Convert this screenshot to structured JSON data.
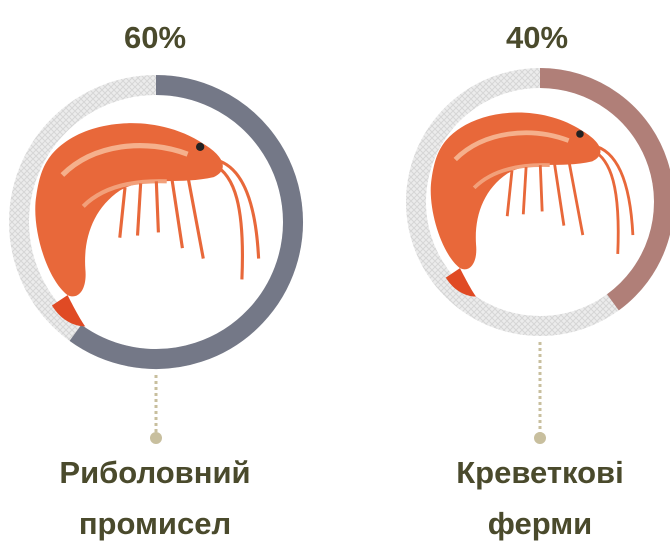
{
  "chart_data": [
    {
      "type": "donut",
      "values": [
        60
      ],
      "value_labels": [
        "60%"
      ],
      "categories": [
        "Риболовний промисел"
      ],
      "color": "#747887"
    },
    {
      "type": "donut",
      "values": [
        40
      ],
      "value_labels": [
        "40%"
      ],
      "categories": [
        "Креветкові ферми"
      ],
      "color": "#b07f78"
    }
  ]
}
